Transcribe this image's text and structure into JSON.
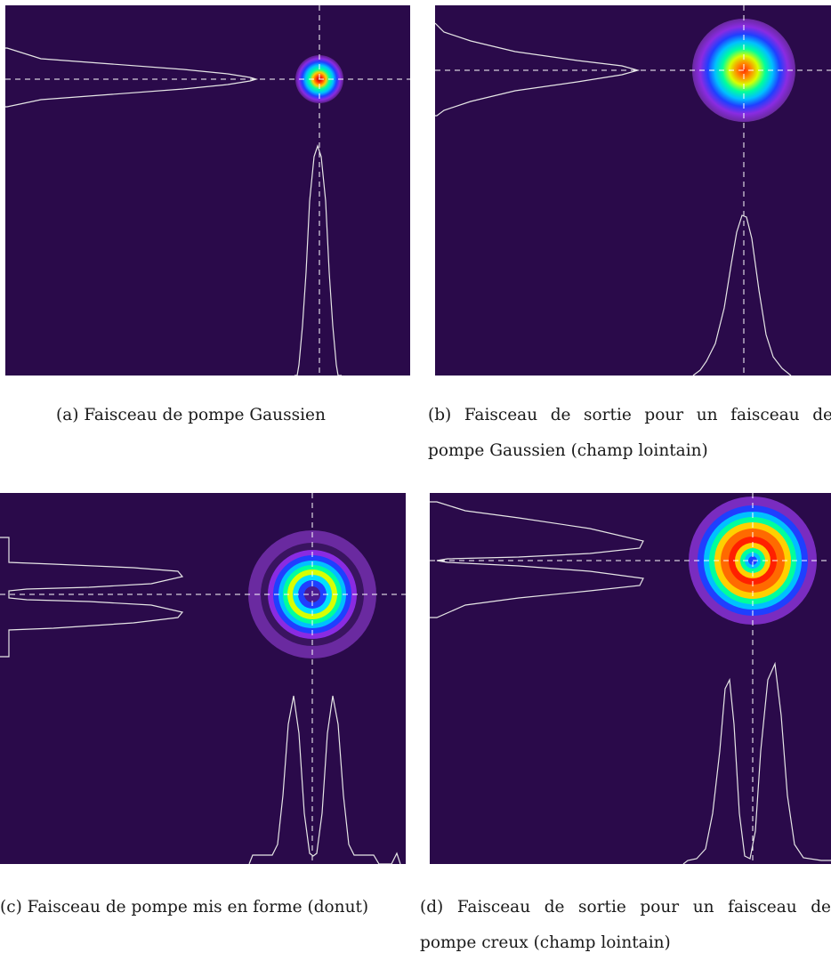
{
  "figure": {
    "colors": {
      "background": "#2a0a4a",
      "profile_line": "#e6e6e6",
      "crosshair": "#ffffff",
      "colormap": [
        "#5b1f8a",
        "#8a2be2",
        "#1f3fff",
        "#00c0ff",
        "#00ff9c",
        "#c8ff00",
        "#ffd000",
        "#ff6a00",
        "#ff0000",
        "#9a0000"
      ]
    },
    "panels": [
      {
        "id": "a",
        "caption": "(a) Faisceau de pompe Gaussien",
        "beam": "gaussian-small"
      },
      {
        "id": "b",
        "caption": "(b) Faisceau de sortie pour un faisceau de pompe Gaussien (champ lointain)",
        "beam": "gaussian-large"
      },
      {
        "id": "c",
        "caption": "(c) Faisceau de pompe mis en forme (donut)",
        "beam": "donut-ring"
      },
      {
        "id": "d",
        "caption": "(d) Faisceau de sortie pour un faisceau de pompe creux (champ lointain)",
        "beam": "donut-large"
      }
    ]
  }
}
